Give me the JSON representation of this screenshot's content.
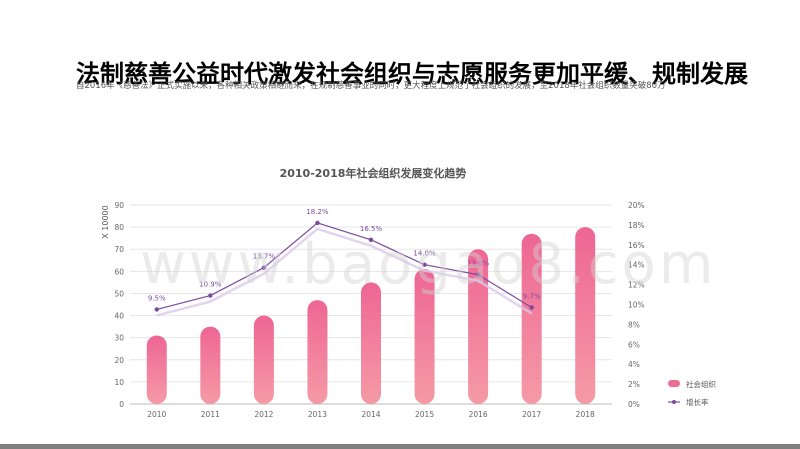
{
  "page": {
    "title": "法制慈善公益时代激发社会组织与志愿服务更加平缓、规制发展",
    "subtitle": "自2016年《慈善法》正式实施以来，各种相关政策相继而来，在规制慈善事业的同时，更大程度上规范了社会组织的发展，至2018年社会组织数量突破80万",
    "watermark": "www.baogao8.com"
  },
  "chart_data": {
    "type": "bar",
    "title": "2010-2018年社会组织发展变化趋势",
    "categories": [
      "2010",
      "2011",
      "2012",
      "2013",
      "2014",
      "2015",
      "2016",
      "2017",
      "2018"
    ],
    "ylabel": "X 10000",
    "ylim": [
      0,
      90
    ],
    "yticks": [
      "0",
      "10",
      "20",
      "30",
      "40",
      "50",
      "60",
      "70",
      "80",
      "90"
    ],
    "y2lim": [
      0,
      20
    ],
    "y2ticks": [
      "0%",
      "2%",
      "4%",
      "6%",
      "8%",
      "10%",
      "12%",
      "14%",
      "16%",
      "18%",
      "20%"
    ],
    "grid": true,
    "legend_position": "bottom-right",
    "series": [
      {
        "name": "社会组织",
        "type": "bar",
        "axis": "left",
        "color": "#ee6d93",
        "values": [
          31,
          35,
          40,
          47,
          55,
          61,
          70,
          77,
          80
        ]
      },
      {
        "name": "增长率",
        "type": "line",
        "axis": "right",
        "color": "#7b4a9e",
        "values": [
          9.5,
          10.9,
          13.7,
          18.2,
          16.5,
          14.0,
          13.0,
          9.7,
          null
        ],
        "labels": [
          "9.5%",
          "10.9%",
          "13.7%",
          "18.2%",
          "16.5%",
          "14.0%",
          "13.0%",
          "9.7%",
          ""
        ]
      }
    ]
  }
}
